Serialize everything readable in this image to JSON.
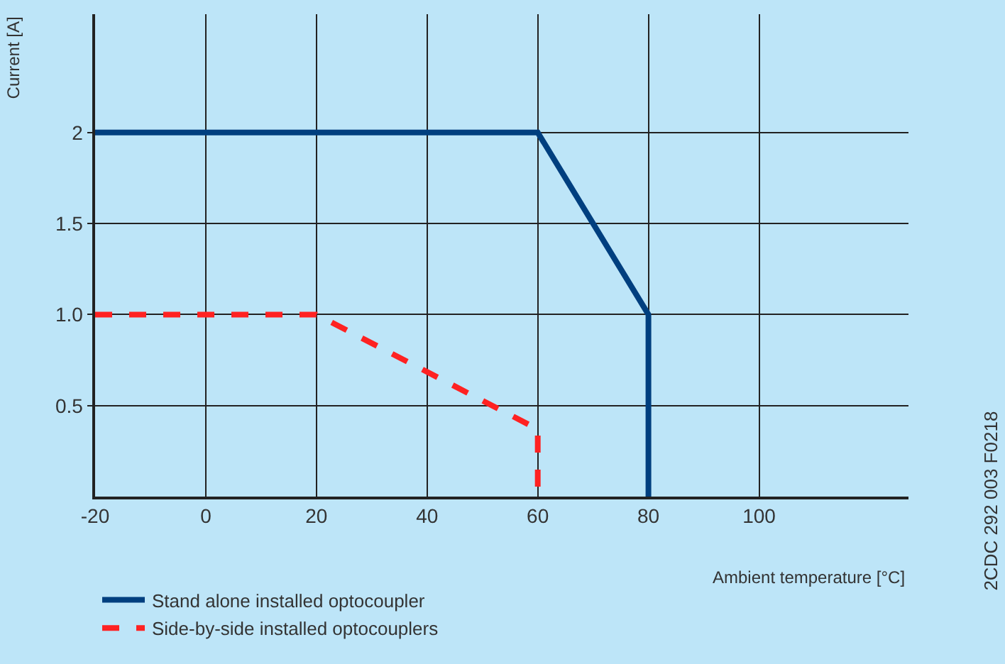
{
  "chart_data": {
    "type": "line",
    "xlabel": "Ambient temperature [°C]",
    "ylabel": "Current [A]",
    "x": [
      -20,
      60,
      80,
      80
    ],
    "series": [
      {
        "name": "Stand alone installed optocoupler",
        "color": "#003f7f",
        "values": [
          2,
          2,
          1,
          0
        ],
        "line_style": "solid"
      },
      {
        "name": "Side-by-side installed optocouplers",
        "color": "#ff2222",
        "x": [
          -20,
          20,
          60,
          60
        ],
        "values": [
          1,
          1,
          0.37,
          0
        ],
        "line_style": "dashed"
      }
    ],
    "xlim": [
      -20,
      127
    ],
    "ylim": [
      0,
      2.65
    ],
    "xticks": [
      -20,
      0,
      20,
      40,
      60,
      80,
      100
    ],
    "yticks": [
      {
        "value": 0.5,
        "label": "0.5"
      },
      {
        "value": 1,
        "label": "1.0"
      },
      {
        "value": 1.5,
        "label": "1.5"
      },
      2
    ],
    "grid": true,
    "legend": "bottom left",
    "marker": "none",
    "annotations": [
      "2CDC 292 003 F0218"
    ]
  }
}
